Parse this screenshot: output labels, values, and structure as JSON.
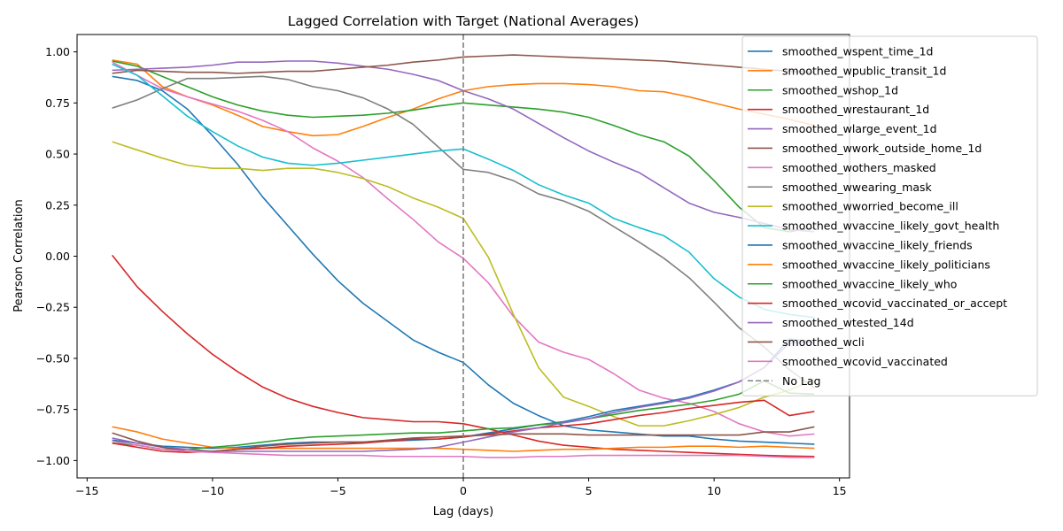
{
  "chart_data": {
    "type": "line",
    "title": "Lagged Correlation with Target (National Averages)",
    "xlabel": "Lag (days)",
    "ylabel": "Pearson Correlation",
    "xlim": [
      -15.4,
      15.4
    ],
    "ylim": [
      -1.085,
      1.085
    ],
    "xticks": [
      -15,
      -10,
      -5,
      0,
      5,
      10,
      15
    ],
    "xtick_labels": [
      "−15",
      "−10",
      "−5",
      "0",
      "5",
      "10",
      "15"
    ],
    "yticks": [
      -1.0,
      -0.75,
      -0.5,
      -0.25,
      0.0,
      0.25,
      0.5,
      0.75,
      1.0
    ],
    "ytick_labels": [
      "−1.00",
      "−0.75",
      "−0.50",
      "−0.25",
      "0.00",
      "0.25",
      "0.50",
      "0.75",
      "1.00"
    ],
    "grid": false,
    "legend_position": "upper-right",
    "x": [
      -14,
      -13,
      -12,
      -11,
      -10,
      -9,
      -8,
      -7,
      -6,
      -5,
      -4,
      -3,
      -2,
      -1,
      0,
      1,
      2,
      3,
      4,
      5,
      6,
      7,
      8,
      9,
      10,
      11,
      12,
      13,
      14
    ],
    "reference_line": {
      "x": 0,
      "name": "No Lag",
      "color": "#808080",
      "style": "dashed"
    },
    "series": [
      {
        "name": "smoothed_wspent_time_1d",
        "color": "#1f77b4",
        "values": [
          0.88,
          0.86,
          0.81,
          0.72,
          0.59,
          0.45,
          0.29,
          0.15,
          0.01,
          -0.12,
          -0.23,
          -0.32,
          -0.41,
          -0.47,
          -0.52,
          -0.63,
          -0.72,
          -0.78,
          -0.83,
          -0.85,
          -0.86,
          -0.87,
          -0.88,
          -0.88,
          -0.895,
          -0.905,
          -0.91,
          -0.915,
          -0.92
        ]
      },
      {
        "name": "smoothed_wpublic_transit_1d",
        "color": "#ff7f0e",
        "values": [
          0.96,
          0.94,
          0.83,
          0.78,
          0.74,
          0.69,
          0.635,
          0.61,
          0.59,
          0.595,
          0.635,
          0.68,
          0.72,
          0.77,
          0.81,
          0.83,
          0.84,
          0.845,
          0.845,
          0.84,
          0.83,
          0.81,
          0.805,
          0.78,
          0.75,
          0.72,
          0.695,
          0.67,
          0.64
        ]
      },
      {
        "name": "smoothed_wshop_1d",
        "color": "#2ca02c",
        "values": [
          0.955,
          0.93,
          0.88,
          0.83,
          0.78,
          0.74,
          0.71,
          0.69,
          0.68,
          0.685,
          0.69,
          0.7,
          0.715,
          0.735,
          0.75,
          0.74,
          0.73,
          0.72,
          0.705,
          0.68,
          0.64,
          0.595,
          0.56,
          0.49,
          0.37,
          0.24,
          0.14,
          0.12,
          0.14
        ]
      },
      {
        "name": "smoothed_wrestaurant_1d",
        "color": "#d62728",
        "values": [
          0.005,
          -0.15,
          -0.27,
          -0.38,
          -0.48,
          -0.565,
          -0.64,
          -0.695,
          -0.735,
          -0.765,
          -0.79,
          -0.8,
          -0.81,
          -0.81,
          -0.82,
          -0.845,
          -0.875,
          -0.905,
          -0.925,
          -0.935,
          -0.945,
          -0.95,
          -0.955,
          -0.96,
          -0.965,
          -0.97,
          -0.975,
          -0.978,
          -0.98
        ]
      },
      {
        "name": "smoothed_wlarge_event_1d",
        "color": "#9467bd",
        "values": [
          0.91,
          0.915,
          0.92,
          0.925,
          0.935,
          0.95,
          0.95,
          0.955,
          0.955,
          0.945,
          0.93,
          0.915,
          0.89,
          0.86,
          0.81,
          0.77,
          0.72,
          0.65,
          0.58,
          0.515,
          0.46,
          0.41,
          0.335,
          0.26,
          0.215,
          0.19,
          0.16,
          0.13,
          0.12
        ]
      },
      {
        "name": "smoothed_wwork_outside_home_1d",
        "color": "#8c564b",
        "values": [
          0.895,
          0.91,
          0.905,
          0.9,
          0.9,
          0.895,
          0.9,
          0.905,
          0.905,
          0.915,
          0.925,
          0.935,
          0.95,
          0.96,
          0.975,
          0.98,
          0.985,
          0.98,
          0.975,
          0.97,
          0.965,
          0.96,
          0.955,
          0.945,
          0.935,
          0.925,
          0.915,
          0.905,
          0.9
        ]
      },
      {
        "name": "smoothed_wothers_masked",
        "color": "#e377c2",
        "values": [
          0.95,
          0.885,
          0.82,
          0.78,
          0.745,
          0.71,
          0.665,
          0.61,
          0.53,
          0.465,
          0.385,
          0.28,
          0.18,
          0.07,
          -0.01,
          -0.13,
          -0.295,
          -0.42,
          -0.47,
          -0.505,
          -0.575,
          -0.655,
          -0.695,
          -0.72,
          -0.76,
          -0.82,
          -0.86,
          -0.88,
          -0.87
        ]
      },
      {
        "name": "smoothed_wwearing_mask",
        "color": "#7f7f7f",
        "values": [
          0.725,
          0.765,
          0.82,
          0.87,
          0.87,
          0.875,
          0.88,
          0.865,
          0.83,
          0.81,
          0.775,
          0.72,
          0.645,
          0.535,
          0.425,
          0.41,
          0.37,
          0.305,
          0.27,
          0.22,
          0.145,
          0.07,
          -0.01,
          -0.105,
          -0.225,
          -0.35,
          -0.445,
          -0.555,
          -0.645
        ]
      },
      {
        "name": "smoothed_wworried_become_ill",
        "color": "#bcbd22",
        "values": [
          0.56,
          0.52,
          0.48,
          0.445,
          0.43,
          0.43,
          0.42,
          0.43,
          0.43,
          0.41,
          0.38,
          0.34,
          0.285,
          0.24,
          0.185,
          -0.005,
          -0.285,
          -0.545,
          -0.69,
          -0.735,
          -0.785,
          -0.83,
          -0.83,
          -0.805,
          -0.775,
          -0.74,
          -0.69,
          -0.655,
          -0.605
        ]
      },
      {
        "name": "smoothed_wvaccine_likely_govt_health",
        "color": "#17becf",
        "values": [
          0.94,
          0.885,
          0.785,
          0.685,
          0.61,
          0.54,
          0.485,
          0.455,
          0.445,
          0.455,
          0.47,
          0.485,
          0.5,
          0.515,
          0.525,
          0.475,
          0.42,
          0.35,
          0.3,
          0.26,
          0.185,
          0.14,
          0.1,
          0.02,
          -0.11,
          -0.2,
          -0.26,
          -0.285,
          -0.3
        ]
      },
      {
        "name": "smoothed_wvaccine_likely_friends",
        "color": "#1f77b4",
        "values": [
          -0.9,
          -0.915,
          -0.93,
          -0.935,
          -0.94,
          -0.935,
          -0.925,
          -0.915,
          -0.91,
          -0.91,
          -0.91,
          -0.905,
          -0.9,
          -0.895,
          -0.885,
          -0.865,
          -0.845,
          -0.825,
          -0.81,
          -0.785,
          -0.755,
          -0.735,
          -0.715,
          -0.69,
          -0.655,
          -0.615,
          -0.545,
          -0.405,
          -0.42
        ]
      },
      {
        "name": "smoothed_wvaccine_likely_politicians",
        "color": "#ff7f0e",
        "values": [
          -0.835,
          -0.86,
          -0.895,
          -0.915,
          -0.935,
          -0.94,
          -0.94,
          -0.94,
          -0.94,
          -0.94,
          -0.94,
          -0.94,
          -0.94,
          -0.94,
          -0.945,
          -0.95,
          -0.955,
          -0.95,
          -0.945,
          -0.945,
          -0.94,
          -0.935,
          -0.935,
          -0.93,
          -0.93,
          -0.935,
          -0.93,
          -0.935,
          -0.94
        ]
      },
      {
        "name": "smoothed_wvaccine_likely_who",
        "color": "#2ca02c",
        "values": [
          -0.915,
          -0.925,
          -0.945,
          -0.945,
          -0.935,
          -0.925,
          -0.91,
          -0.895,
          -0.885,
          -0.88,
          -0.875,
          -0.87,
          -0.865,
          -0.865,
          -0.855,
          -0.845,
          -0.84,
          -0.825,
          -0.815,
          -0.795,
          -0.775,
          -0.755,
          -0.74,
          -0.725,
          -0.705,
          -0.675,
          -0.61,
          -0.67,
          -0.675
        ]
      },
      {
        "name": "smoothed_wcovid_vaccinated_or_accept",
        "color": "#d62728",
        "values": [
          -0.915,
          -0.935,
          -0.955,
          -0.96,
          -0.955,
          -0.945,
          -0.94,
          -0.93,
          -0.925,
          -0.92,
          -0.915,
          -0.905,
          -0.895,
          -0.895,
          -0.885,
          -0.87,
          -0.855,
          -0.84,
          -0.83,
          -0.82,
          -0.8,
          -0.78,
          -0.765,
          -0.745,
          -0.73,
          -0.715,
          -0.705,
          -0.78,
          -0.76
        ]
      },
      {
        "name": "smoothed_wtested_14d",
        "color": "#9467bd",
        "values": [
          -0.89,
          -0.915,
          -0.935,
          -0.945,
          -0.955,
          -0.955,
          -0.955,
          -0.955,
          -0.955,
          -0.955,
          -0.955,
          -0.95,
          -0.945,
          -0.935,
          -0.91,
          -0.885,
          -0.86,
          -0.84,
          -0.815,
          -0.795,
          -0.765,
          -0.74,
          -0.72,
          -0.695,
          -0.66,
          -0.615,
          -0.545,
          -0.425,
          -0.42
        ]
      },
      {
        "name": "smoothed_wcli",
        "color": "#8c564b",
        "values": [
          -0.865,
          -0.905,
          -0.935,
          -0.955,
          -0.955,
          -0.945,
          -0.93,
          -0.92,
          -0.915,
          -0.91,
          -0.91,
          -0.9,
          -0.89,
          -0.885,
          -0.88,
          -0.875,
          -0.87,
          -0.87,
          -0.87,
          -0.875,
          -0.875,
          -0.875,
          -0.875,
          -0.875,
          -0.875,
          -0.875,
          -0.86,
          -0.86,
          -0.835
        ]
      },
      {
        "name": "smoothed_wcovid_vaccinated",
        "color": "#e377c2",
        "values": [
          -0.905,
          -0.925,
          -0.945,
          -0.955,
          -0.96,
          -0.965,
          -0.97,
          -0.975,
          -0.975,
          -0.975,
          -0.975,
          -0.98,
          -0.98,
          -0.98,
          -0.98,
          -0.985,
          -0.985,
          -0.98,
          -0.98,
          -0.975,
          -0.975,
          -0.975,
          -0.975,
          -0.975,
          -0.975,
          -0.975,
          -0.98,
          -0.985,
          -0.985
        ]
      }
    ]
  }
}
